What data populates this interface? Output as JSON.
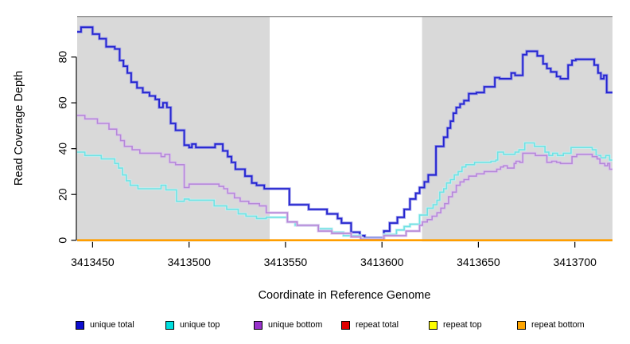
{
  "chart_data": {
    "type": "line",
    "subtype": "step-coverage",
    "title": "",
    "xlabel": "Coordinate in Reference Genome",
    "ylabel": "Read Coverage Depth",
    "xlim": [
      3413442,
      3413719.5
    ],
    "ylim": [
      0,
      97.7
    ],
    "x_ticks": [
      3413450,
      3413500,
      3413550,
      3413600,
      3413650,
      3413700
    ],
    "y_ticks": [
      0,
      20,
      40,
      60,
      80
    ],
    "grid": false,
    "legend_position": "bottom",
    "plot_bg": "#ffffff",
    "shaded_color": "#d9d9d9",
    "shaded_regions": [
      [
        3413442,
        3413541.8
      ],
      [
        3413620.8,
        3413719.5
      ]
    ],
    "top_border_color": "#8f8f8f",
    "axis_color": "#000000",
    "series": [
      {
        "name": "unique total",
        "color": "#2424cf",
        "halo": "#8c8ce8",
        "legend_color": "#0d0dcf",
        "width": 1.8,
        "steps": [
          [
            3413442,
            91
          ],
          [
            3413444,
            93
          ],
          [
            3413450,
            90
          ],
          [
            3413453.5,
            88
          ],
          [
            3413457,
            84.5
          ],
          [
            3413461.5,
            83.5
          ],
          [
            3413464,
            78.5
          ],
          [
            3413466,
            76
          ],
          [
            3413468,
            73
          ],
          [
            3413470,
            69
          ],
          [
            3413473,
            66.5
          ],
          [
            3413476,
            64.5
          ],
          [
            3413479.5,
            63
          ],
          [
            3413482.5,
            61.5
          ],
          [
            3413484.5,
            58
          ],
          [
            3413486.5,
            60
          ],
          [
            3413488.5,
            58
          ],
          [
            3413490.5,
            51
          ],
          [
            3413493,
            48
          ],
          [
            3413497.5,
            41.5
          ],
          [
            3413500,
            40.5
          ],
          [
            3413501.5,
            42
          ],
          [
            3413503.5,
            40.5
          ],
          [
            3413513.5,
            42
          ],
          [
            3413517.5,
            39
          ],
          [
            3413520,
            36.5
          ],
          [
            3413522,
            34
          ],
          [
            3413524,
            31
          ],
          [
            3413529,
            28
          ],
          [
            3413532.5,
            25
          ],
          [
            3413535,
            24
          ],
          [
            3413539,
            22.5
          ],
          [
            3413552,
            15.5
          ],
          [
            3413562,
            13.5
          ],
          [
            3413571.5,
            11.5
          ],
          [
            3413577,
            9.5
          ],
          [
            3413579,
            7.5
          ],
          [
            3413584,
            3.5
          ],
          [
            3413588.5,
            2
          ],
          [
            3413591,
            1
          ],
          [
            3413601,
            4
          ],
          [
            3413604,
            7.5
          ],
          [
            3413608,
            10
          ],
          [
            3413611.5,
            13.5
          ],
          [
            3413614.5,
            18
          ],
          [
            3413617.5,
            20.5
          ],
          [
            3413619.5,
            23
          ],
          [
            3413622,
            25.5
          ],
          [
            3413624,
            28.5
          ],
          [
            3413628,
            41
          ],
          [
            3413632,
            45
          ],
          [
            3413634,
            49
          ],
          [
            3413635.5,
            52
          ],
          [
            3413637,
            55.5
          ],
          [
            3413638.5,
            58
          ],
          [
            3413640.5,
            59.5
          ],
          [
            3413642.5,
            61
          ],
          [
            3413645,
            64
          ],
          [
            3413649,
            64.5
          ],
          [
            3413653,
            67
          ],
          [
            3413658.5,
            71
          ],
          [
            3413661,
            70.5
          ],
          [
            3413667,
            73
          ],
          [
            3413669,
            72
          ],
          [
            3413673,
            81
          ],
          [
            3413675,
            82.5
          ],
          [
            3413680.5,
            80.5
          ],
          [
            3413683.5,
            77
          ],
          [
            3413685.5,
            75
          ],
          [
            3413687.5,
            73.5
          ],
          [
            3413690.5,
            71.5
          ],
          [
            3413692.5,
            70.5
          ],
          [
            3413696.5,
            76.5
          ],
          [
            3413698.5,
            78.5
          ],
          [
            3413700.5,
            79
          ],
          [
            3413710,
            76.5
          ],
          [
            3413712,
            73
          ],
          [
            3413713.5,
            70.5
          ],
          [
            3413715,
            72
          ],
          [
            3413716.5,
            64.5
          ]
        ]
      },
      {
        "name": "unique top",
        "color": "#70e2e4",
        "halo": "#c2f1f2",
        "legend_color": "#00e0e0",
        "width": 1.6,
        "steps": [
          [
            3413442,
            38.5
          ],
          [
            3413446,
            37
          ],
          [
            3413454.5,
            35.5
          ],
          [
            3413461.5,
            33.5
          ],
          [
            3413463.5,
            31.5
          ],
          [
            3413465.5,
            28.5
          ],
          [
            3413467.5,
            26
          ],
          [
            3413469.5,
            24
          ],
          [
            3413473.5,
            22.5
          ],
          [
            3413485.5,
            24
          ],
          [
            3413488,
            22
          ],
          [
            3413493.5,
            17
          ],
          [
            3413497.5,
            18
          ],
          [
            3413500,
            17.5
          ],
          [
            3413513,
            15
          ],
          [
            3413519.5,
            13.5
          ],
          [
            3413525.5,
            11.5
          ],
          [
            3413529.5,
            10.5
          ],
          [
            3413535,
            9.5
          ],
          [
            3413540,
            10
          ],
          [
            3413551,
            8
          ],
          [
            3413555,
            6.5
          ],
          [
            3413567,
            5
          ],
          [
            3413574,
            3.5
          ],
          [
            3413580,
            2
          ],
          [
            3413589,
            0.6
          ],
          [
            3413601,
            2.5
          ],
          [
            3413607.5,
            4.5
          ],
          [
            3413611.5,
            6
          ],
          [
            3413614.5,
            7
          ],
          [
            3413619.5,
            11
          ],
          [
            3413623.5,
            14
          ],
          [
            3413626.5,
            15.5
          ],
          [
            3413628.5,
            17.5
          ],
          [
            3413630,
            21
          ],
          [
            3413632,
            22.5
          ],
          [
            3413633.5,
            25
          ],
          [
            3413635.5,
            26.5
          ],
          [
            3413637.5,
            28.5
          ],
          [
            3413639.5,
            30
          ],
          [
            3413641.5,
            32
          ],
          [
            3413643.5,
            33
          ],
          [
            3413648,
            34
          ],
          [
            3413656.5,
            34.5
          ],
          [
            3413659,
            35
          ],
          [
            3413660,
            38.5
          ],
          [
            3413663,
            37.5
          ],
          [
            3413669,
            38.5
          ],
          [
            3413671,
            39.5
          ],
          [
            3413674,
            42.5
          ],
          [
            3413679,
            41
          ],
          [
            3413684.5,
            38.5
          ],
          [
            3413686.5,
            37
          ],
          [
            3413688.5,
            38
          ],
          [
            3413691,
            37
          ],
          [
            3413694,
            38
          ],
          [
            3413698,
            40.5
          ],
          [
            3413709,
            39.5
          ],
          [
            3413711,
            37
          ],
          [
            3413713.5,
            36
          ],
          [
            3413716,
            37
          ],
          [
            3413718,
            35
          ]
        ]
      },
      {
        "name": "unique bottom",
        "color": "#b688d8",
        "halo": "#dcc4ee",
        "legend_color": "#9932cc",
        "width": 1.6,
        "steps": [
          [
            3413442,
            54.5
          ],
          [
            3413446,
            53
          ],
          [
            3413452.5,
            51
          ],
          [
            3413458.5,
            48.5
          ],
          [
            3413462.5,
            46
          ],
          [
            3413464.5,
            43.5
          ],
          [
            3413466.5,
            41
          ],
          [
            3413470.5,
            39.5
          ],
          [
            3413474.5,
            38
          ],
          [
            3413485.5,
            36.5
          ],
          [
            3413487.5,
            37.5
          ],
          [
            3413490,
            34
          ],
          [
            3413493,
            33
          ],
          [
            3413497.5,
            23
          ],
          [
            3413500,
            24.5
          ],
          [
            3413515.5,
            23.5
          ],
          [
            3413518,
            22.5
          ],
          [
            3413520,
            20.5
          ],
          [
            3413523.5,
            18.5
          ],
          [
            3413526.5,
            17
          ],
          [
            3413531,
            16
          ],
          [
            3413536.5,
            15
          ],
          [
            3413540,
            12
          ],
          [
            3413551,
            8
          ],
          [
            3413556,
            6.5
          ],
          [
            3413567,
            4
          ],
          [
            3413574,
            3
          ],
          [
            3413584,
            1.5
          ],
          [
            3413589,
            0.4
          ],
          [
            3413601,
            2
          ],
          [
            3413612.5,
            4
          ],
          [
            3413619.5,
            6.5
          ],
          [
            3413621,
            8
          ],
          [
            3413623.5,
            9
          ],
          [
            3413626,
            10.5
          ],
          [
            3413628.5,
            12
          ],
          [
            3413630.5,
            14
          ],
          [
            3413632.5,
            16
          ],
          [
            3413634.5,
            19
          ],
          [
            3413636.5,
            21
          ],
          [
            3413638.5,
            24
          ],
          [
            3413640.5,
            25.5
          ],
          [
            3413642.5,
            26.5
          ],
          [
            3413645,
            28
          ],
          [
            3413649,
            29
          ],
          [
            3413653,
            30
          ],
          [
            3413659.5,
            31
          ],
          [
            3413661.5,
            32
          ],
          [
            3413663,
            32.5
          ],
          [
            3413665,
            31.5
          ],
          [
            3413668.5,
            33.5
          ],
          [
            3413669.5,
            34.5
          ],
          [
            3413671.5,
            34
          ],
          [
            3413673,
            38
          ],
          [
            3413679.5,
            37
          ],
          [
            3413685.5,
            34
          ],
          [
            3413688,
            34.5
          ],
          [
            3413690.5,
            34
          ],
          [
            3413692.5,
            33.5
          ],
          [
            3413698.5,
            36.5
          ],
          [
            3413701,
            37.5
          ],
          [
            3413709,
            36.5
          ],
          [
            3413711.5,
            35.5
          ],
          [
            3413713,
            33.5
          ],
          [
            3413715.5,
            32.5
          ],
          [
            3413717,
            33.5
          ],
          [
            3413718,
            31
          ]
        ]
      },
      {
        "name": "repeat total",
        "color": "#e00000",
        "legend_color": "#e00000",
        "width": 2.2,
        "steps": [
          [
            3413442,
            0
          ]
        ]
      },
      {
        "name": "repeat top",
        "color": "#ffff00",
        "legend_color": "#ffff00",
        "width": 2.2,
        "steps": [
          [
            3413442,
            0
          ]
        ]
      },
      {
        "name": "repeat bottom",
        "color": "#ff9e00",
        "legend_color": "#ffa500",
        "width": 2.6,
        "steps": [
          [
            3413442,
            0
          ]
        ]
      }
    ]
  }
}
